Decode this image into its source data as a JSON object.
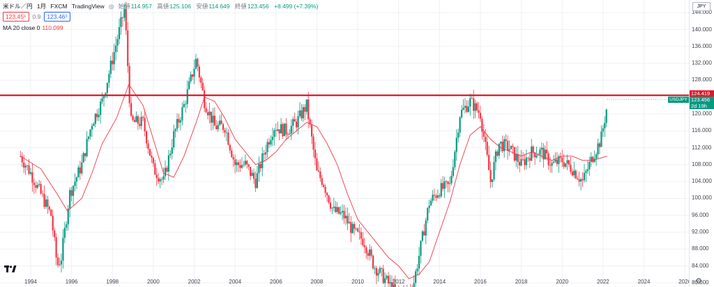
{
  "legend": {
    "symbol_name": "米ドル／円",
    "interval": "1月",
    "exchange": "FXCM",
    "provider": "TradingView",
    "open_label": "始値",
    "open_value": "114.957",
    "high_label": "高値",
    "high_value": "125.106",
    "low_label": "安値",
    "low_value": "114.649",
    "close_label": "終値",
    "close_value": "123.456",
    "change": "+8.499 (+7.39%)"
  },
  "price_boxes": {
    "sell": "123.45⁶",
    "spread": "0.9",
    "buy": "123.46⁵"
  },
  "ma_legend": {
    "label": "MA 20 close 0",
    "value": "110.099"
  },
  "currency_button": "JPY",
  "price_labels": {
    "horizontal_line": "124.419",
    "last_price": "123.456",
    "countdown": "2d 19h",
    "symbol": "USDJPY"
  },
  "colors": {
    "up": "#089981",
    "down": "#f23645",
    "ma": "#f23645",
    "hline": "#e0182a",
    "grid": "#eef0f4"
  },
  "chart_data": {
    "type": "candlestick",
    "symbol": "USDJPY",
    "interval": "1M",
    "y_range": [
      79,
      147
    ],
    "y_ticks": [
      "80.000",
      "84.000",
      "88.000",
      "92.000",
      "96.000",
      "100.000",
      "104.000",
      "108.000",
      "112.000",
      "116.000",
      "120.000",
      "124.000",
      "128.000",
      "132.000",
      "136.000",
      "140.000",
      "144.000"
    ],
    "y_tick_values": [
      80,
      84,
      88,
      92,
      96,
      100,
      104,
      108,
      112,
      116,
      120,
      124,
      128,
      132,
      136,
      140,
      144
    ],
    "x_range": [
      1992.5,
      2026.2
    ],
    "x_ticks": [
      "1994",
      "1996",
      "1998",
      "2000",
      "2002",
      "2004",
      "2006",
      "2008",
      "2010",
      "2012",
      "2014",
      "2016",
      "2018",
      "2020",
      "2022",
      "2024",
      "2026"
    ],
    "x_tick_values": [
      1994,
      1996,
      1998,
      2000,
      2002,
      2004,
      2006,
      2008,
      2010,
      2012,
      2014,
      2016,
      2018,
      2020,
      2022,
      2024,
      2026
    ],
    "horizontal_line": 124.419,
    "ma_period": 20,
    "series": [
      {
        "name": "USDJPY",
        "close_path_x": [
          1993.5,
          1994.0,
          1994.5,
          1995.0,
          1995.3,
          1995.5,
          1995.9,
          1996.5,
          1997.0,
          1997.5,
          1998.0,
          1998.6,
          1998.9,
          1999.5,
          2000.0,
          2000.5,
          2001.0,
          2001.5,
          2002.1,
          2002.5,
          2003.0,
          2003.5,
          2004.0,
          2004.5,
          2005.0,
          2005.5,
          2005.9,
          2006.5,
          2007.0,
          2007.5,
          2008.0,
          2008.3,
          2008.8,
          2009.3,
          2009.8,
          2010.3,
          2010.8,
          2011.3,
          2011.8,
          2012.3,
          2012.7,
          2013.1,
          2013.5,
          2014.0,
          2014.5,
          2015.0,
          2015.5,
          2016.0,
          2016.5,
          2016.9,
          2017.4,
          2018.0,
          2018.5,
          2019.0,
          2019.5,
          2020.0,
          2020.5,
          2021.0,
          2021.5,
          2021.9,
          2022.2
        ],
        "close_path_y": [
          110,
          106,
          101,
          96,
          84,
          86,
          101,
          108,
          118,
          123,
          133,
          145,
          118,
          118,
          107,
          104,
          115,
          122,
          133,
          123,
          117,
          117,
          108,
          108,
          104,
          112,
          117,
          116,
          118,
          122,
          106,
          104,
          97,
          96,
          92,
          90,
          84,
          81,
          78,
          77,
          79,
          89,
          99,
          102,
          103,
          120,
          123,
          120,
          104,
          113,
          112,
          108,
          111,
          111,
          108,
          109,
          107,
          104,
          110,
          114,
          122
        ]
      }
    ],
    "ma_x": [
      1993.5,
      1994.5,
      1995.3,
      1995.8,
      1996.5,
      1997.0,
      1997.5,
      1998.2,
      1998.8,
      1999.5,
      2000.0,
      2000.5,
      2001.0,
      2001.5,
      2002.1,
      2002.5,
      2003.0,
      2003.5,
      2004.0,
      2004.5,
      2005.0,
      2005.5,
      2006.0,
      2006.5,
      2007.0,
      2007.5,
      2008.0,
      2008.5,
      2009.0,
      2009.5,
      2010.0,
      2010.5,
      2011.0,
      2011.5,
      2012.0,
      2012.5,
      2013.0,
      2013.5,
      2014.0,
      2014.5,
      2015.0,
      2015.5,
      2016.0,
      2016.5,
      2017.0,
      2017.5,
      2018.0,
      2018.5,
      2019.0,
      2019.5,
      2020.0,
      2020.5,
      2021.0,
      2021.5,
      2022.2
    ],
    "ma_y": [
      110,
      107,
      101,
      97,
      100,
      106,
      113,
      119,
      127,
      122,
      114,
      106,
      105,
      110,
      118,
      124,
      123,
      119,
      114,
      111,
      108,
      109,
      111,
      114,
      116,
      118,
      117,
      113,
      108,
      101,
      95,
      92,
      89,
      86,
      84,
      81,
      82,
      85,
      92,
      99,
      108,
      115,
      117,
      114,
      112,
      111,
      110,
      111,
      110,
      109,
      110,
      110,
      109,
      109,
      110
    ]
  }
}
